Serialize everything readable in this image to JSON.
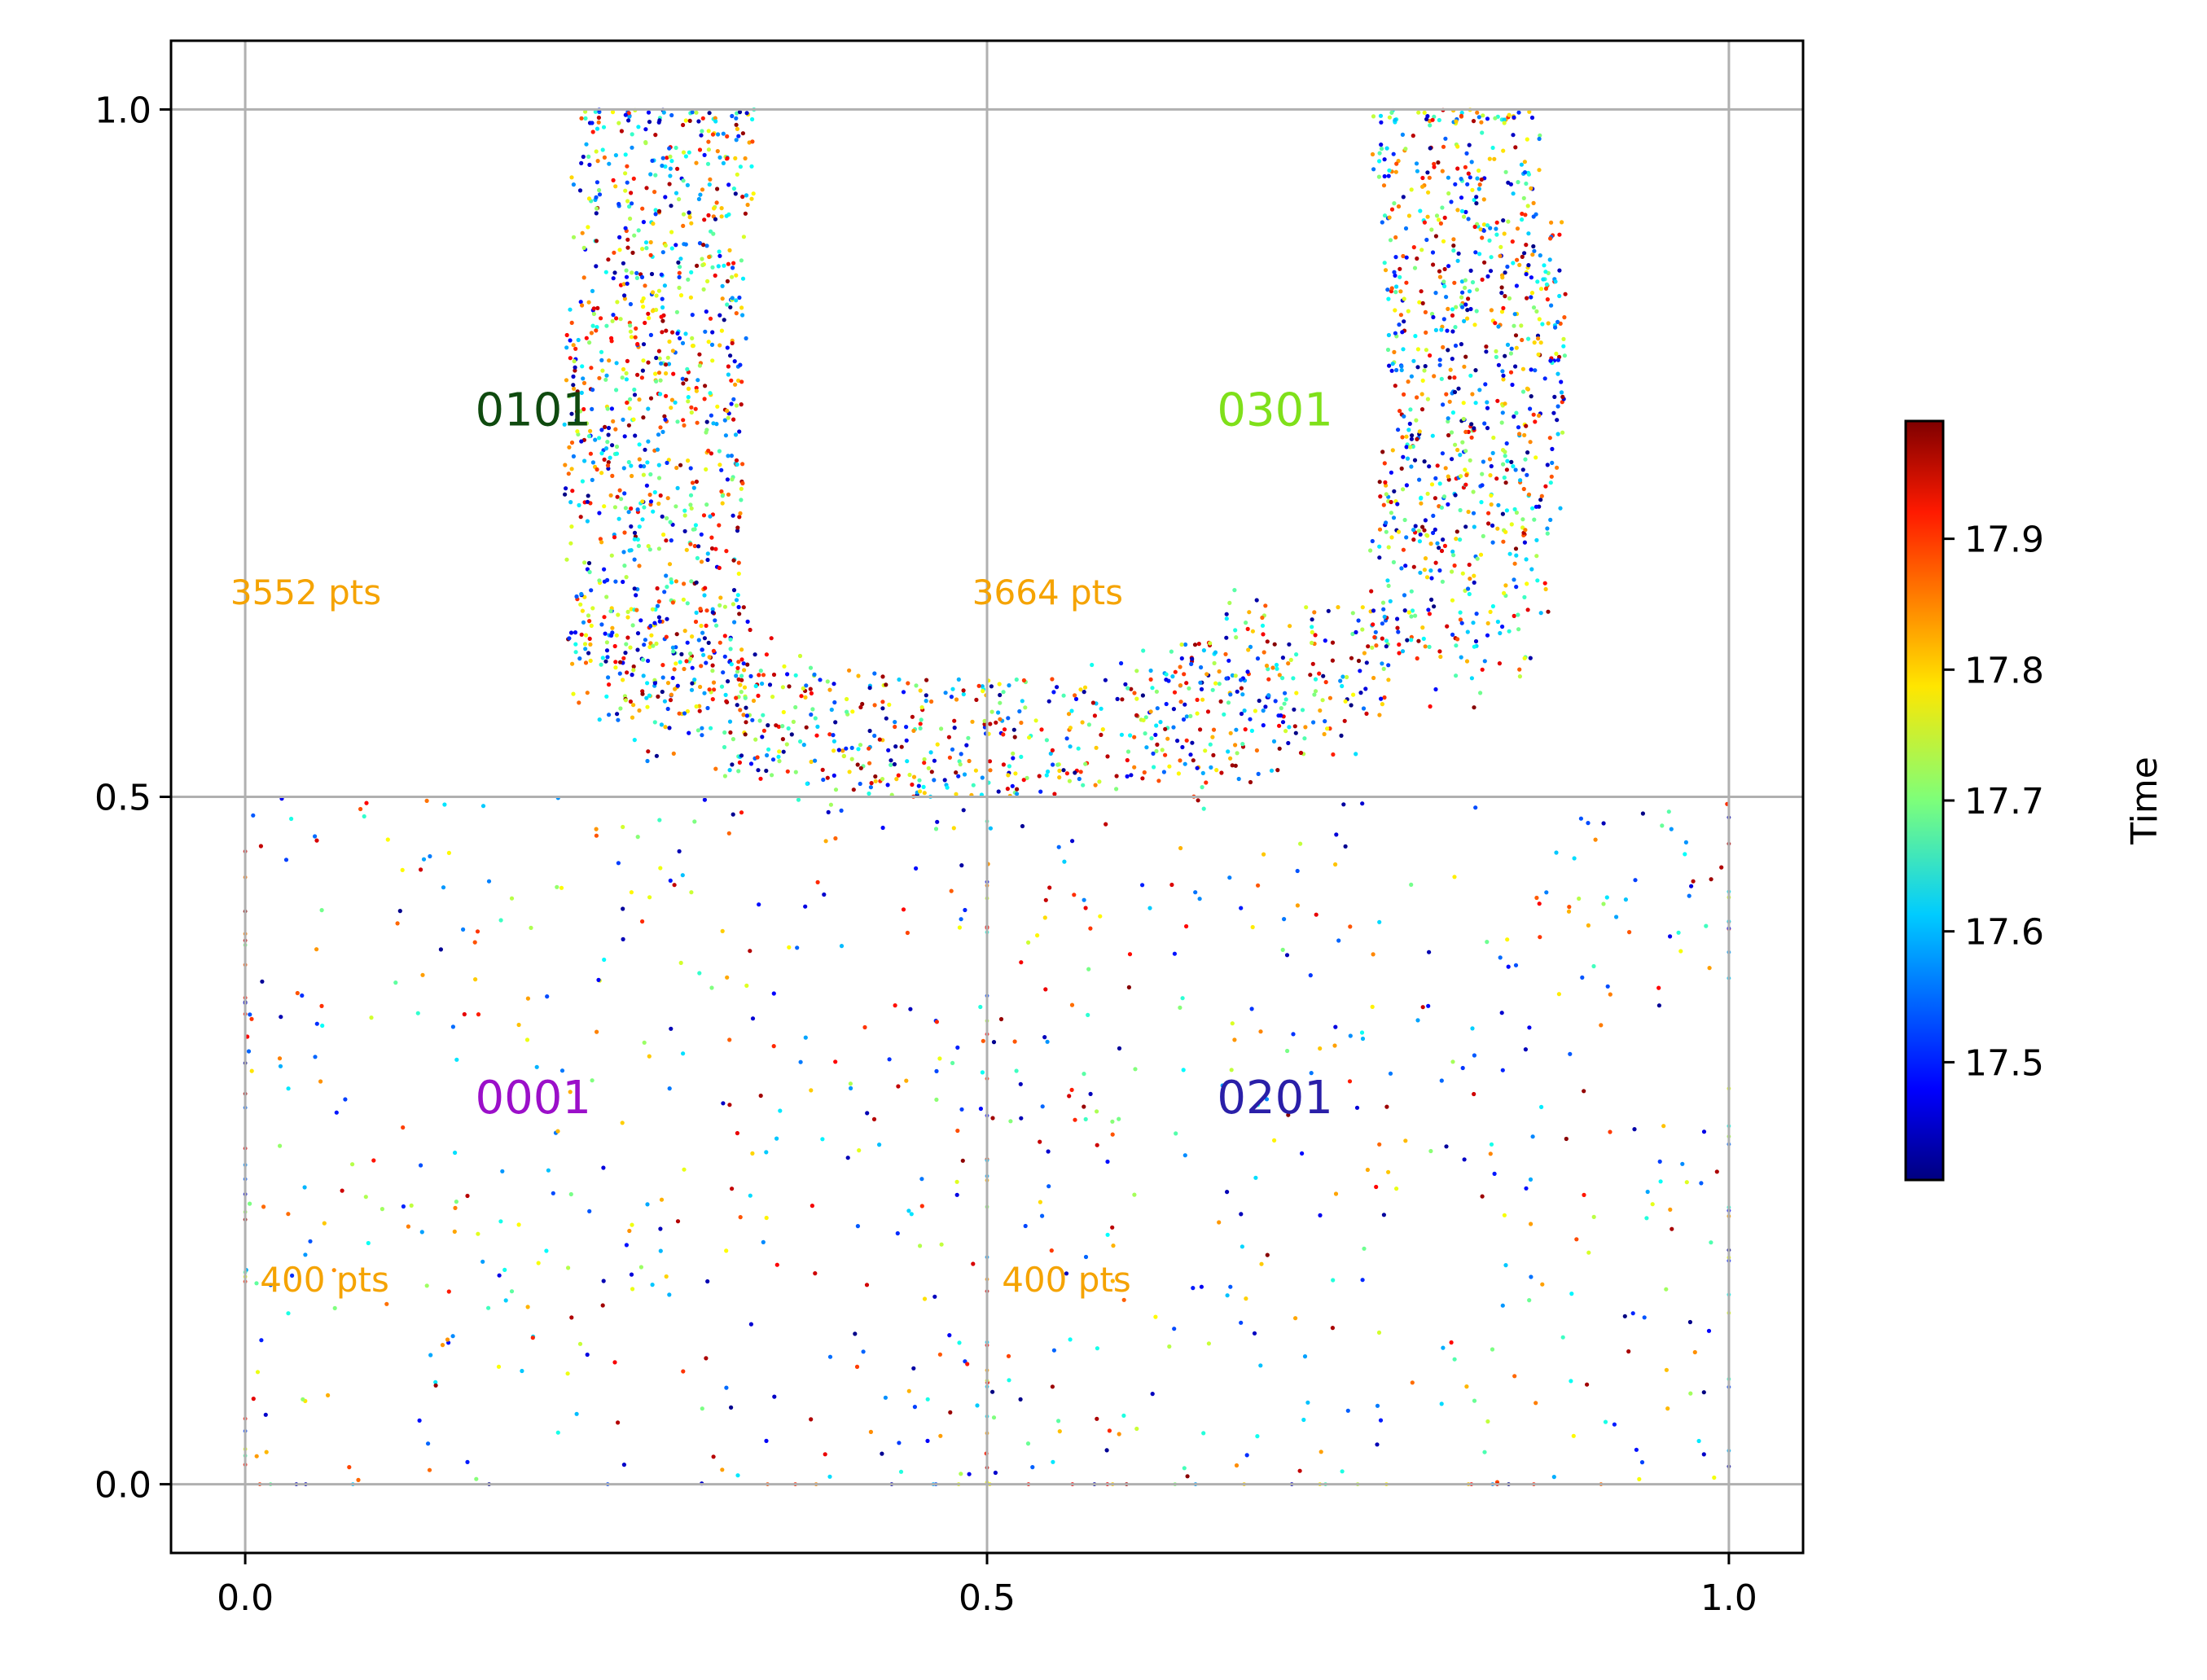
{
  "chart_data": {
    "type": "scatter",
    "xlim": [
      -0.05,
      1.05
    ],
    "ylim": [
      -0.05,
      1.05
    ],
    "xticks": [
      "0.0",
      "0.5",
      "1.0"
    ],
    "yticks": [
      "0.0",
      "0.5",
      "1.0"
    ],
    "grid": true,
    "colorbar": {
      "label": "Time",
      "colormap": "jet",
      "range": [
        17.41,
        17.99
      ],
      "ticks": [
        "17.5",
        "17.6",
        "17.7",
        "17.8",
        "17.9"
      ]
    },
    "quadrants": [
      {
        "name": "0001",
        "label_x": 0.155,
        "label_y": 0.27,
        "color": "#9b0fc9",
        "count_text": "400 pts",
        "count_x": 0.01,
        "count_y": 0.14,
        "points": 400,
        "region": "uniform-lower-left"
      },
      {
        "name": "0101",
        "label_x": 0.155,
        "label_y": 0.77,
        "color": "#0f4a0f",
        "count_text": "3552 pts",
        "count_x": -0.01,
        "count_y": 0.64,
        "points": 3552,
        "region": "band-left"
      },
      {
        "name": "0201",
        "label_x": 0.655,
        "label_y": 0.27,
        "color": "#2a1fa8",
        "count_text": "400 pts",
        "count_x": 0.51,
        "count_y": 0.14,
        "points": 400,
        "region": "uniform-lower-right"
      },
      {
        "name": "0301",
        "label_x": 0.655,
        "label_y": 0.77,
        "color": "#7fe01a",
        "count_text": "3664 pts",
        "count_x": 0.49,
        "count_y": 0.64,
        "points": 3664,
        "region": "band-right"
      }
    ],
    "count_color": "#f5a300"
  }
}
